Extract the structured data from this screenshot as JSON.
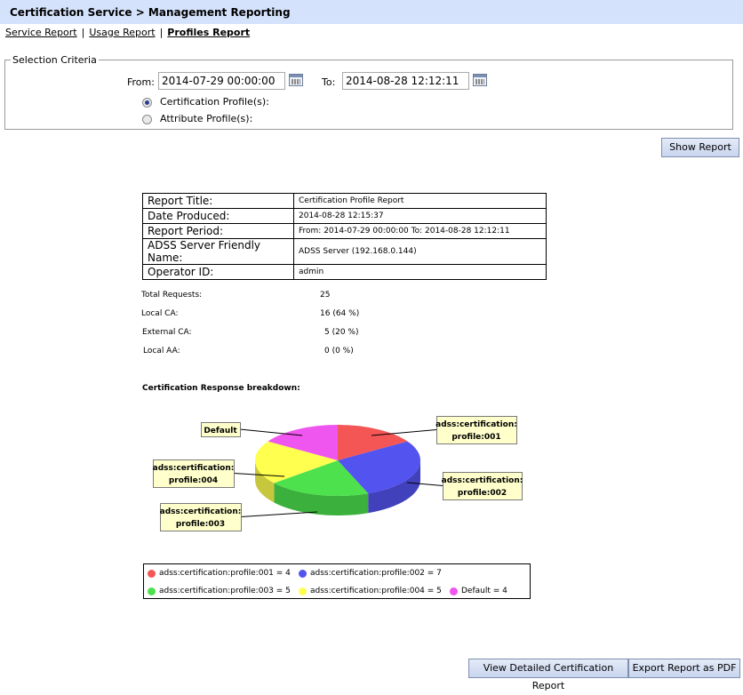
{
  "title": "Certification Service > Management Reporting",
  "nav": {
    "service_report": "Service Report",
    "usage_report": "Usage Report",
    "profiles_report": "Profiles Report",
    "separator": "|"
  },
  "criteria": {
    "legend": "Selection Criteria",
    "from_label": "From:",
    "from_value": "2014-07-29 00:00:00",
    "to_label": "To:",
    "to_value": "2014-08-28 12:12:11",
    "option_cert": "Certification Profile(s):",
    "option_attr": "Attribute Profile(s):",
    "selected": "cert"
  },
  "show_report_label": "Show Report",
  "report_info": [
    {
      "key": "Report Title:",
      "value": "Certification Profile Report"
    },
    {
      "key": "Date Produced:",
      "value": "2014-08-28 12:15:37"
    },
    {
      "key": "Report Period:",
      "value": "From: 2014-07-29 00:00:00   To: 2014-08-28 12:12:11"
    },
    {
      "key": "ADSS Server Friendly Name:",
      "value": "ADSS Server (192.168.0.144)"
    },
    {
      "key": "Operator ID:",
      "value": "admin"
    }
  ],
  "stats": [
    {
      "label": "Total Requests:",
      "value": "25"
    },
    {
      "label": "Local CA:",
      "value": "16  (64 %)"
    },
    {
      "label": "External CA:",
      "value": "5  (20 %)"
    },
    {
      "label": "Local AA:",
      "value": "0  (0 %)"
    }
  ],
  "chart_heading": "Certification Response breakdown:",
  "chart_data": {
    "type": "pie",
    "labels": [
      "adss:certification:profile:001",
      "adss:certification:profile:002",
      "adss:certification:profile:003",
      "adss:certification:profile:004",
      "Default"
    ],
    "values": [
      4,
      7,
      5,
      5,
      4
    ],
    "colors": [
      "#f45656",
      "#5353f0",
      "#4de14d",
      "#ffff4f",
      "#ef55ef"
    ],
    "callouts": [
      [
        "adss:certification:",
        "profile:001"
      ],
      [
        "adss:certification:",
        "profile:002"
      ],
      [
        "adss:certification:",
        "profile:003"
      ],
      [
        "adss:certification:",
        "profile:004"
      ],
      [
        "Default"
      ]
    ],
    "legend": [
      "adss:certification:profile:001 = 4",
      "adss:certification:profile:002 = 7",
      "adss:certification:profile:003 = 5",
      "adss:certification:profile:004 = 5",
      "Default = 4"
    ],
    "style": "3d"
  },
  "footer": {
    "detailed_label": "View Detailed Certification Report",
    "pdf_label": "Export Report as PDF"
  }
}
